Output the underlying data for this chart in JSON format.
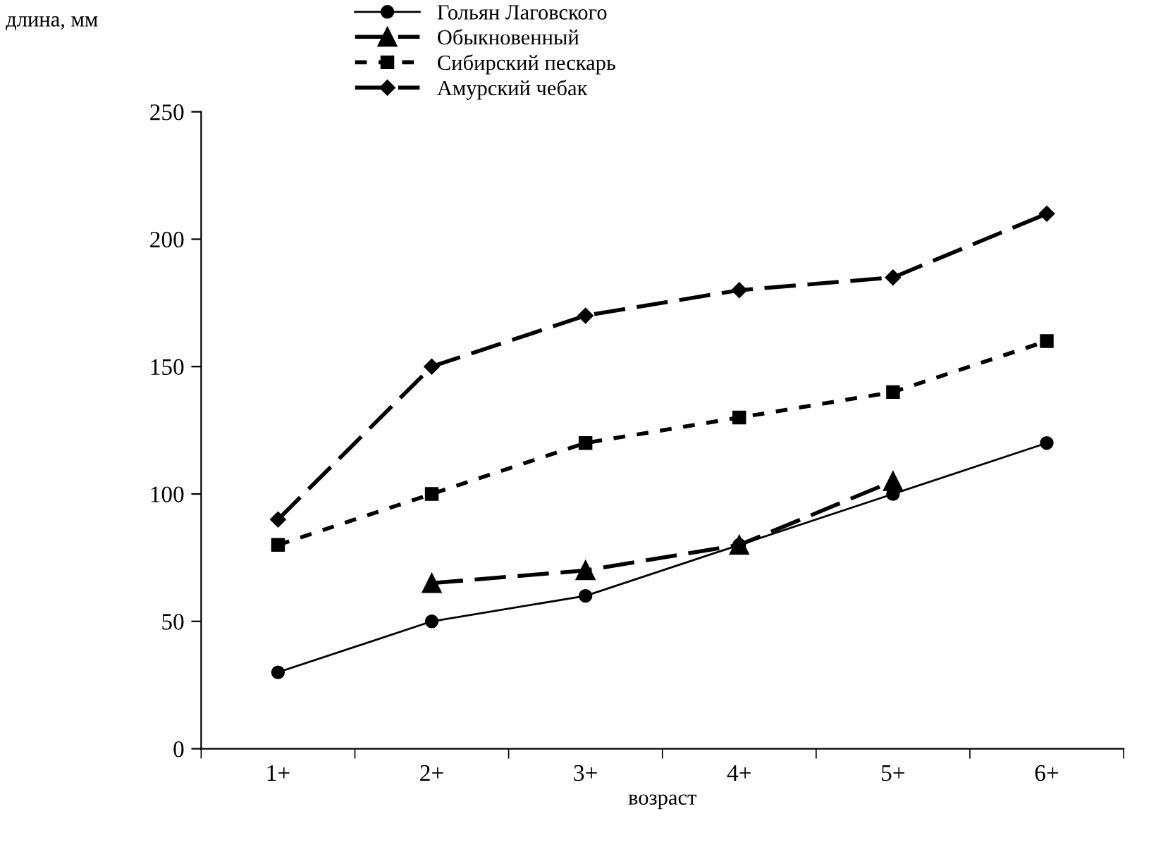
{
  "chart_data": {
    "type": "line",
    "xlabel": "возраст",
    "ylabel": "длина, мм",
    "categories": [
      "1+",
      "2+",
      "3+",
      "4+",
      "5+",
      "6+"
    ],
    "series": [
      {
        "name": "Гольян Лаговского",
        "color": "#000000",
        "marker": "circle",
        "line_style": "solid",
        "values": [
          30,
          50,
          60,
          80,
          100,
          120
        ]
      },
      {
        "name": "Обыкновенный",
        "color": "#000000",
        "marker": "triangle",
        "line_style": "dashed",
        "values": [
          null,
          65,
          70,
          80,
          105,
          null
        ]
      },
      {
        "name": "Сибирский пескарь",
        "color": "#000000",
        "marker": "square",
        "line_style": "dotted",
        "values": [
          80,
          100,
          120,
          130,
          140,
          160
        ]
      },
      {
        "name": "Амурский чебак",
        "color": "#000000",
        "marker": "diamond",
        "line_style": "dashed",
        "values": [
          90,
          150,
          170,
          180,
          185,
          210
        ]
      }
    ],
    "ylim": [
      0,
      250
    ],
    "yticks": [
      0,
      50,
      100,
      150,
      200,
      250
    ],
    "grid": false,
    "legend": "top"
  }
}
